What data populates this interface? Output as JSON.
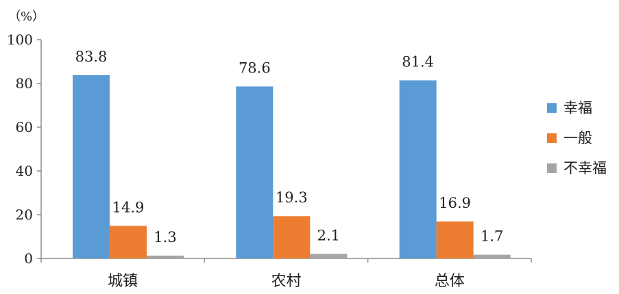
{
  "chart_data": {
    "type": "bar",
    "unit_label": "（%）",
    "categories": [
      "城镇",
      "农村",
      "总体"
    ],
    "series": [
      {
        "name": "幸福",
        "color": "#5b9bd5",
        "values": [
          83.8,
          78.6,
          81.4
        ]
      },
      {
        "name": "一般",
        "color": "#ed7d31",
        "values": [
          14.9,
          19.3,
          16.9
        ]
      },
      {
        "name": "不幸福",
        "color": "#a5a5a5",
        "values": [
          1.3,
          2.1,
          1.7
        ]
      }
    ],
    "ylim": [
      0,
      100
    ],
    "yticks": [
      0,
      20,
      40,
      60,
      80,
      100
    ],
    "grid": false,
    "legend_position": "right"
  }
}
